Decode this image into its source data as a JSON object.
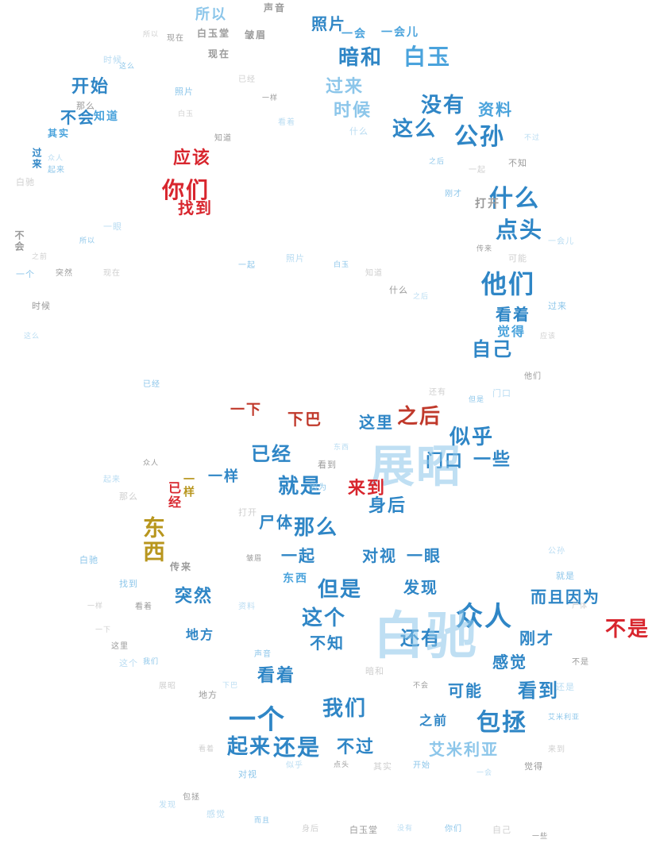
{
  "palette": {
    "blue_dark": "#2f86c6",
    "blue_mid": "#4aa3dc",
    "blue_light": "#8cc6ea",
    "blue_pale": "#b9dcf2",
    "red": "#d8262e",
    "red_dark": "#c0392b",
    "gold": "#b8961e",
    "gray": "#9a9a9a",
    "gray_light": "#cfcfcf"
  },
  "words": [
    "所以",
    "声音",
    "照片",
    "一会",
    "一会儿",
    "白玉堂",
    "皱眉",
    "现在",
    "暗和",
    "白玉",
    "开始",
    "过来",
    "没有",
    "资料",
    "时候",
    "不会",
    "知道",
    "其实",
    "应该",
    "你们",
    "找到",
    "这么",
    "公孙",
    "什么",
    "点头",
    "他们",
    "自己",
    "一下",
    "已经",
    "就是",
    "之后",
    "似乎",
    "门口",
    "一些",
    "这里",
    "那么",
    "尸体",
    "一起",
    "对视",
    "但是",
    "发现",
    "这个",
    "众人",
    "不是",
    "不知",
    "看着",
    "还有",
    "一个",
    "我们",
    "起来",
    "还是",
    "不过",
    "包拯",
    "看到",
    "之前",
    "展昭",
    "白驰",
    "艾米利亚",
    "刚才",
    "感觉",
    "东西",
    "突然",
    "地方",
    "一样",
    "来到",
    "可能",
    "而且",
    "因为",
    "一眼",
    "下巴",
    "看着",
    "觉得",
    "传来",
    "身后",
    "打开"
  ]
}
